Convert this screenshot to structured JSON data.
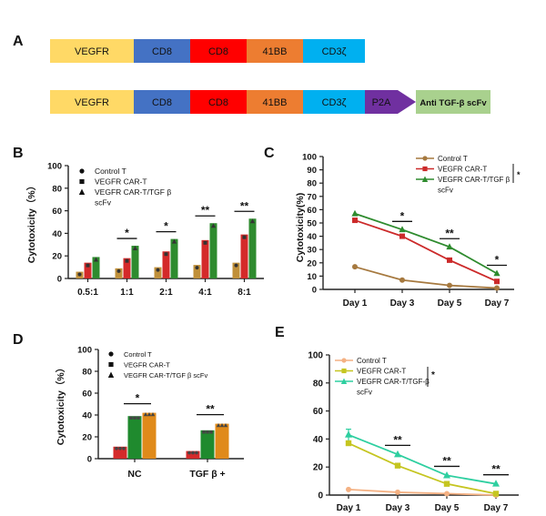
{
  "panel_labels": {
    "A": "A",
    "B": "B",
    "C": "C",
    "D": "D",
    "E": "E"
  },
  "constructs": {
    "top": [
      {
        "label": "VEGFR",
        "color": "#ffd966"
      },
      {
        "label": "CD8",
        "color": "#4472c4"
      },
      {
        "label": "CD8",
        "color": "#ff0000"
      },
      {
        "label": "41BB",
        "color": "#ed7d31"
      },
      {
        "label": "CD3ζ",
        "color": "#00b0f0"
      }
    ],
    "bottom": [
      {
        "label": "VEGFR",
        "color": "#ffd966"
      },
      {
        "label": "CD8",
        "color": "#4472c4"
      },
      {
        "label": "CD8",
        "color": "#ff0000"
      },
      {
        "label": "41BB",
        "color": "#ed7d31"
      },
      {
        "label": "CD3ζ",
        "color": "#00b0f0"
      },
      {
        "label": "P2A",
        "color": "#7030a0"
      },
      {
        "label": "Anti TGF-β scFv",
        "color": "#a9d18e"
      }
    ]
  },
  "chart_data": [
    {
      "id": "B",
      "type": "bar",
      "ylabel": "Cytotoxicity（%）",
      "ylim": [
        0,
        100
      ],
      "yticks": [
        "0",
        "20",
        "40",
        "60",
        "80",
        "100"
      ],
      "categories": [
        "0.5:1",
        "1:1",
        "2:1",
        "4:1",
        "8:1"
      ],
      "series": [
        {
          "name": "Control T",
          "color": "#c0903a",
          "values": [
            6,
            9,
            10,
            12,
            14
          ]
        },
        {
          "name": "VEGFR CAR-T",
          "color": "#d42a2a",
          "values": [
            14,
            18,
            24,
            34,
            39
          ]
        },
        {
          "name": "VEGFR CAR-T/TGF β scFv",
          "color": "#2e8b2e",
          "values": [
            19,
            29,
            35,
            49,
            53
          ]
        }
      ],
      "legend": [
        "Control T",
        "VEGFR CAR-T",
        "VEGFR CAR-T/TGF β",
        "scFv"
      ],
      "significance": [
        "*",
        "*",
        "**",
        "**"
      ]
    },
    {
      "id": "C",
      "type": "line",
      "ylabel": "Cytotoxicity(%)",
      "ylim": [
        0,
        100
      ],
      "yticks": [
        "0",
        "10",
        "20",
        "30",
        "40",
        "50",
        "60",
        "70",
        "80",
        "90",
        "100"
      ],
      "categories": [
        "Day 1",
        "Day 3",
        "Day 5",
        "Day 7"
      ],
      "series": [
        {
          "name": "Control T",
          "color": "#a6793f",
          "values": [
            17,
            7,
            3,
            1
          ]
        },
        {
          "name": "VEGFR CAR-T",
          "color": "#cc2a2a",
          "values": [
            52,
            40,
            22,
            6
          ]
        },
        {
          "name": "VEGFR CAR-T/TGF β scFv",
          "color": "#2e8b2e",
          "values": [
            57,
            45,
            32,
            12
          ]
        }
      ],
      "legend": [
        "Control T",
        "VEGFR CAR-T",
        "VEGFR CAR-T/TGF β",
        "scFv"
      ],
      "legend_star": "*",
      "significance": [
        "*",
        "**",
        "*"
      ]
    },
    {
      "id": "D",
      "type": "bar",
      "ylabel": "Cytotoxicity（%）",
      "ylim": [
        0,
        100
      ],
      "yticks": [
        "0",
        "20",
        "40",
        "60",
        "80",
        "100"
      ],
      "categories": [
        "NC",
        "TGF β +"
      ],
      "series": [
        {
          "name": "Control T",
          "color": "#d42a2a",
          "values": [
            11,
            7
          ]
        },
        {
          "name": "VEGFR CAR-T",
          "color": "#1f8a2e",
          "values": [
            39,
            26
          ]
        },
        {
          "name": "VEGFR CAR-T/TGF β scFv",
          "color": "#e08a1a",
          "values": [
            42,
            32
          ]
        }
      ],
      "legend": [
        "Control T",
        "VEGFR CAR-T",
        "VEGFR CAR-T/TGF β scFv"
      ],
      "significance": [
        "*",
        "**"
      ]
    },
    {
      "id": "E",
      "type": "line",
      "ylim": [
        0,
        100
      ],
      "yticks": [
        "0",
        "20",
        "40",
        "60",
        "80",
        "100"
      ],
      "categories": [
        "Day 1",
        "Day 3",
        "Day 5",
        "Day 7"
      ],
      "series": [
        {
          "name": "Control T",
          "color": "#f4b183",
          "values": [
            4,
            2,
            1,
            0
          ]
        },
        {
          "name": "VEGFR CAR-T",
          "color": "#c5c520",
          "values": [
            37,
            21,
            8,
            1
          ]
        },
        {
          "name": "VEGFR CAR-T/TGF-β scFv",
          "color": "#2ecfa0",
          "values": [
            43,
            29,
            14,
            8
          ]
        }
      ],
      "legend": [
        "Control T",
        "VEGFR CAR-T",
        "VEGFR CAR-T/TGF-β",
        "scFv"
      ],
      "legend_star": "*",
      "significance": [
        "**",
        "**",
        "**"
      ]
    }
  ]
}
